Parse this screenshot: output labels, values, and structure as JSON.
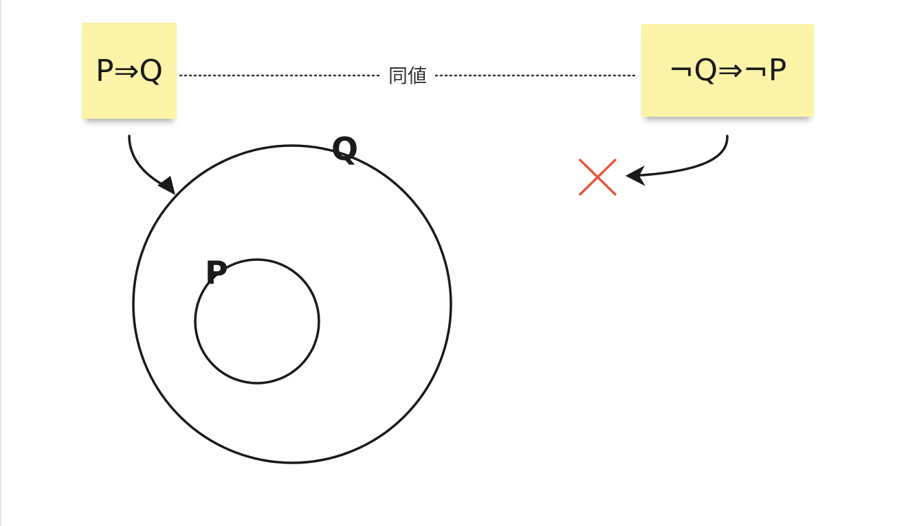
{
  "notes": {
    "left": {
      "text": "P⇒Q"
    },
    "right": {
      "text": "¬Q⇒¬P"
    }
  },
  "connector": {
    "label": "同値"
  },
  "circles": {
    "outer_label": "Q",
    "inner_label": "P"
  },
  "cross": {
    "color": "#e8553a"
  },
  "colors": {
    "sticky": "#fbf3a8",
    "stroke": "#1a1a1a"
  }
}
